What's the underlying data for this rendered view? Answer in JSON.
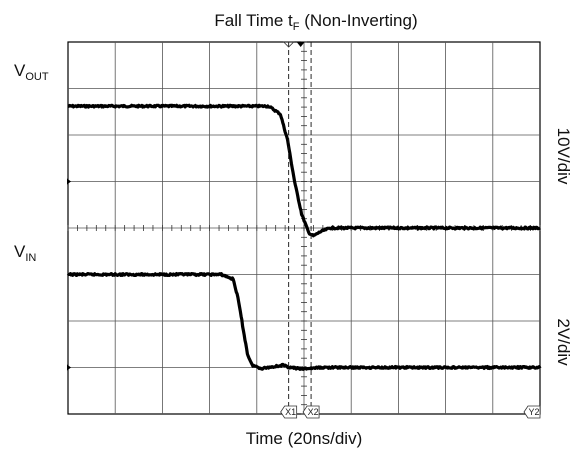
{
  "chart_data": {
    "type": "line",
    "title": "Fall Time t",
    "title_sub": "F",
    "title_suffix": " (Non-Inverting)",
    "xlabel": "Time (20ns/div)",
    "grid": true,
    "x_divisions": 10,
    "y_divisions": 8,
    "x_unit": "ns",
    "x_per_div": 20,
    "xlim": [
      0,
      200
    ],
    "series": [
      {
        "name": "V",
        "name_sub": "OUT",
        "scale_label": "10V/div",
        "color": "#000000",
        "baseline_div": 5.0,
        "points": [
          [
            0,
            6.62
          ],
          [
            50,
            6.62
          ],
          [
            85,
            6.62
          ],
          [
            90,
            6.45
          ],
          [
            93,
            5.9
          ],
          [
            96,
            5.0
          ],
          [
            99,
            4.3
          ],
          [
            102,
            3.9
          ],
          [
            104,
            3.83
          ],
          [
            107,
            3.92
          ],
          [
            111,
            4.0
          ],
          [
            120,
            4.0
          ],
          [
            200,
            4.0
          ]
        ]
      },
      {
        "name": "V",
        "name_sub": "IN",
        "scale_label": "2V/div",
        "color": "#000000",
        "baseline_div": 1.0,
        "points": [
          [
            0,
            3.0
          ],
          [
            65,
            3.0
          ],
          [
            70,
            2.9
          ],
          [
            72,
            2.5
          ],
          [
            74,
            1.9
          ],
          [
            76,
            1.3
          ],
          [
            78,
            1.05
          ],
          [
            82,
            0.98
          ],
          [
            91,
            1.05
          ],
          [
            94,
            1.0
          ],
          [
            99,
            0.97
          ],
          [
            108,
            1.0
          ],
          [
            200,
            1.0
          ]
        ]
      }
    ],
    "cursors": [
      {
        "label": "X1",
        "x": 93.5
      },
      {
        "label": "X2",
        "x": 103.0
      },
      {
        "label": "Y2",
        "x": 200
      }
    ]
  }
}
